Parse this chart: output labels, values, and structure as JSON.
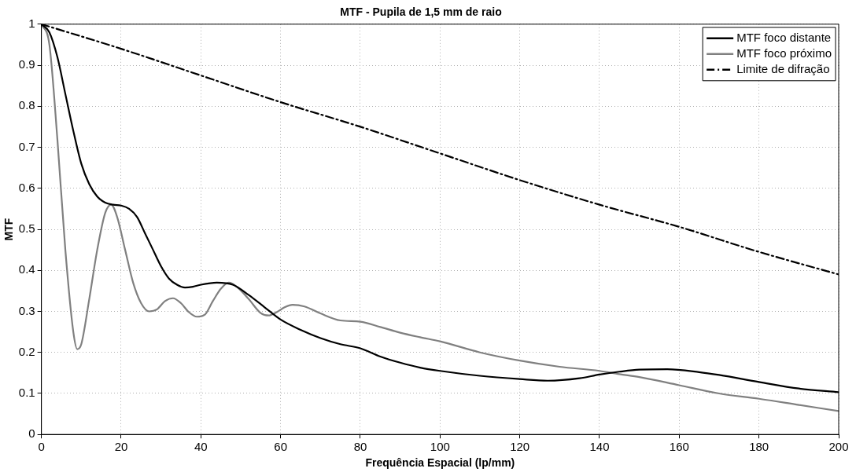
{
  "chart_data": {
    "type": "line",
    "title": "MTF - Pupila de 1,5 mm de raio",
    "xlabel": "Frequência Espacial (lp/mm)",
    "ylabel": "MTF",
    "xlim": [
      0,
      200
    ],
    "xticks": [
      0,
      20,
      40,
      60,
      80,
      100,
      120,
      140,
      160,
      180,
      200
    ],
    "ylim": [
      0,
      1
    ],
    "yticks": [
      0,
      0.1,
      0.2,
      0.3,
      0.4,
      0.5,
      0.6,
      0.7,
      0.8,
      0.9,
      1
    ],
    "grid": true,
    "legend": "top right",
    "marker": "none",
    "series": [
      {
        "name": "MTF foco distante",
        "color": "#000000",
        "line_style": "solid",
        "x": [
          0,
          2,
          4,
          6,
          8,
          10,
          12,
          14,
          16,
          18,
          20,
          22,
          24,
          26,
          28,
          30,
          32,
          34,
          36,
          38,
          40,
          44,
          48,
          52,
          56,
          60,
          65,
          70,
          75,
          80,
          85,
          90,
          95,
          100,
          110,
          120,
          127,
          135,
          140,
          145,
          150,
          157,
          165,
          170,
          180,
          190,
          200
        ],
        "values": [
          1,
          0.98,
          0.92,
          0.83,
          0.74,
          0.66,
          0.61,
          0.58,
          0.565,
          0.56,
          0.558,
          0.55,
          0.53,
          0.49,
          0.45,
          0.41,
          0.38,
          0.365,
          0.358,
          0.36,
          0.365,
          0.37,
          0.365,
          0.34,
          0.31,
          0.28,
          0.255,
          0.235,
          0.22,
          0.21,
          0.19,
          0.175,
          0.163,
          0.155,
          0.143,
          0.135,
          0.131,
          0.137,
          0.146,
          0.153,
          0.158,
          0.159,
          0.152,
          0.145,
          0.128,
          0.112,
          0.103
        ]
      },
      {
        "name": "MTF foco próximo",
        "color": "#808080",
        "line_style": "solid",
        "x": [
          0,
          2,
          4,
          6,
          8,
          9,
          10,
          12,
          14,
          16,
          17.5,
          19,
          21,
          23,
          25,
          27,
          29,
          31,
          33,
          35,
          37,
          39,
          41,
          43,
          45,
          47,
          49,
          52,
          55,
          57,
          59,
          61,
          63,
          66,
          70,
          75,
          80,
          85,
          90,
          95,
          100,
          110,
          120,
          130,
          140,
          145,
          150,
          160,
          170,
          180,
          190,
          200
        ],
        "values": [
          1,
          0.95,
          0.72,
          0.45,
          0.25,
          0.208,
          0.22,
          0.33,
          0.45,
          0.54,
          0.56,
          0.53,
          0.45,
          0.37,
          0.32,
          0.3,
          0.305,
          0.325,
          0.332,
          0.32,
          0.298,
          0.287,
          0.292,
          0.325,
          0.355,
          0.37,
          0.36,
          0.33,
          0.296,
          0.29,
          0.298,
          0.31,
          0.316,
          0.312,
          0.295,
          0.278,
          0.275,
          0.262,
          0.248,
          0.237,
          0.227,
          0.2,
          0.18,
          0.165,
          0.155,
          0.147,
          0.14,
          0.12,
          0.1,
          0.087,
          0.072,
          0.057
        ]
      },
      {
        "name": "Limite de difração",
        "color": "#000000",
        "line_style": "dashed",
        "x": [
          0,
          20,
          40,
          60,
          80,
          100,
          120,
          140,
          160,
          180,
          200
        ],
        "values": [
          1,
          0.94,
          0.875,
          0.81,
          0.75,
          0.685,
          0.62,
          0.56,
          0.506,
          0.445,
          0.39
        ]
      }
    ]
  }
}
